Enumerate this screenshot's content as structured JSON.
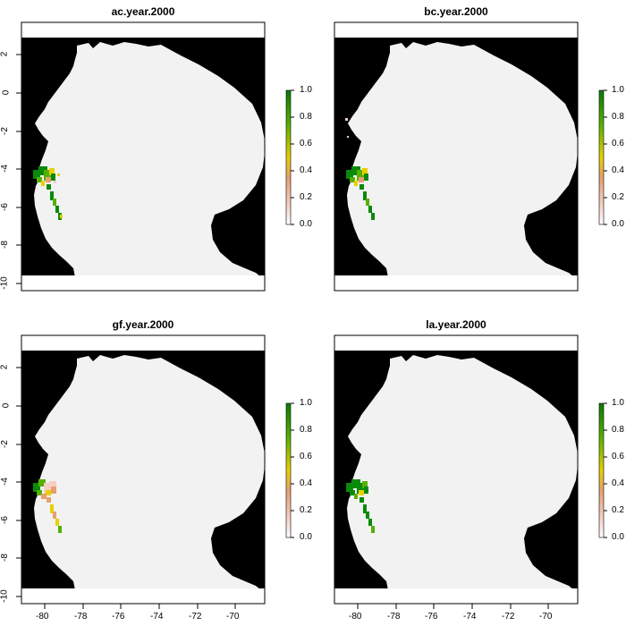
{
  "panels": [
    {
      "title": "ac.year.2000"
    },
    {
      "title": "bc.year.2000"
    },
    {
      "title": "gf.year.2000"
    },
    {
      "title": "la.year.2000"
    }
  ],
  "y_ticks": [
    "2",
    "0",
    "-2",
    "-4",
    "-6",
    "-8",
    "-10"
  ],
  "x_ticks": [
    "-80",
    "-78",
    "-76",
    "-74",
    "-72",
    "-70"
  ],
  "legend_ticks": [
    "1.0",
    "0.8",
    "0.6",
    "0.4",
    "0.2",
    "0.0"
  ],
  "colors": {
    "land": "#f2f2f2",
    "background": "#000000",
    "high": "#0a8a0a",
    "mid": "#e8d000",
    "low": "#f5cfc4"
  }
}
